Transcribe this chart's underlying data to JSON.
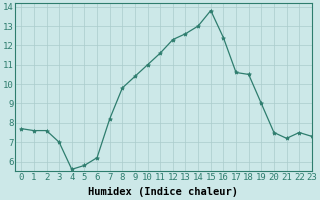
{
  "x": [
    0,
    1,
    2,
    3,
    4,
    5,
    6,
    7,
    8,
    9,
    10,
    11,
    12,
    13,
    14,
    15,
    16,
    17,
    18,
    19,
    20,
    21,
    22,
    23
  ],
  "y": [
    7.7,
    7.6,
    7.6,
    7.0,
    5.6,
    5.8,
    6.2,
    8.2,
    9.8,
    10.4,
    11.0,
    11.6,
    12.3,
    12.6,
    13.0,
    13.8,
    12.4,
    10.6,
    10.5,
    9.0,
    7.5,
    7.2,
    7.5,
    7.3
  ],
  "line_color": "#2e7d6e",
  "marker": "*",
  "marker_size": 3,
  "bg_color": "#cce8e8",
  "grid_color": "#aacccc",
  "xlabel": "Humidex (Indice chaleur)",
  "xlim": [
    -0.5,
    23
  ],
  "ylim": [
    5.5,
    14.2
  ],
  "yticks": [
    6,
    7,
    8,
    9,
    10,
    11,
    12,
    13,
    14
  ],
  "xticks": [
    0,
    1,
    2,
    3,
    4,
    5,
    6,
    7,
    8,
    9,
    10,
    11,
    12,
    13,
    14,
    15,
    16,
    17,
    18,
    19,
    20,
    21,
    22,
    23
  ],
  "tick_label_fontsize": 6.5,
  "xlabel_fontsize": 7.5,
  "xlabel_fontweight": "bold"
}
